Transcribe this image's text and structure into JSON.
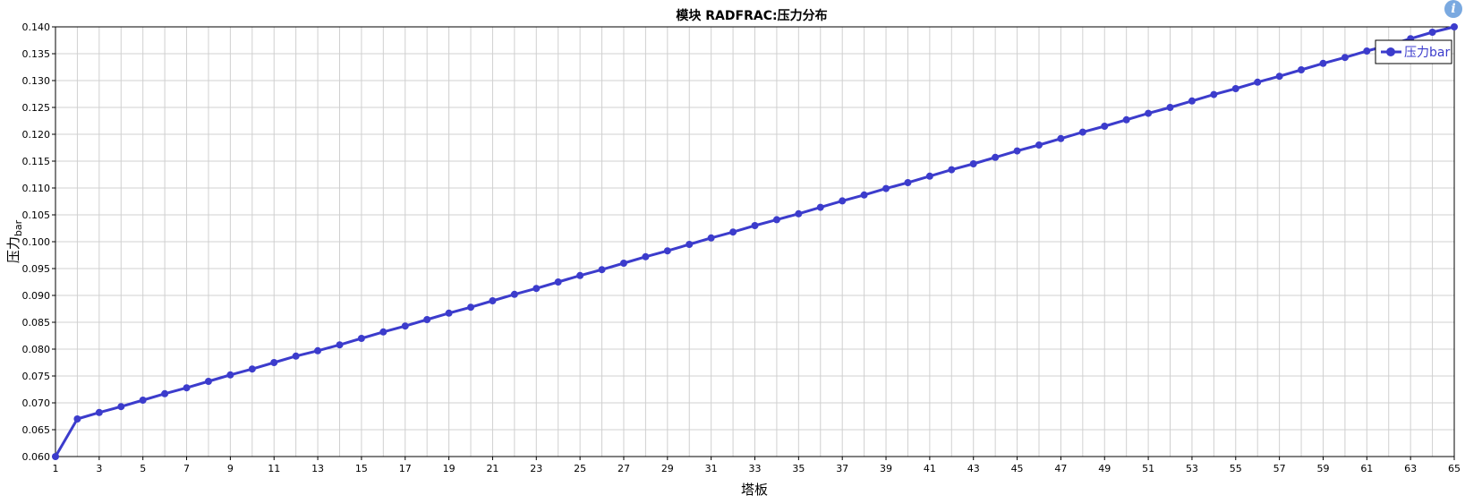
{
  "chart_data": {
    "type": "line",
    "title": "模块 RADFRAC:压力分布",
    "xlabel": "塔板",
    "ylabel": "压力",
    "ylabel_unit": "bar",
    "xlim": [
      1,
      65
    ],
    "ylim": [
      0.06,
      0.14
    ],
    "x_ticks": [
      1,
      3,
      5,
      7,
      9,
      11,
      13,
      15,
      17,
      19,
      21,
      23,
      25,
      27,
      29,
      31,
      33,
      35,
      37,
      39,
      41,
      43,
      45,
      47,
      49,
      51,
      53,
      55,
      57,
      59,
      61,
      63,
      65
    ],
    "y_ticks": [
      "0.060",
      "0.065",
      "0.070",
      "0.075",
      "0.080",
      "0.085",
      "0.090",
      "0.095",
      "0.100",
      "0.105",
      "0.110",
      "0.115",
      "0.120",
      "0.125",
      "0.130",
      "0.135",
      "0.140"
    ],
    "grid": true,
    "legend_position": "top-right",
    "series": [
      {
        "name": "压力bar",
        "color": "#3c3ccc",
        "x": [
          1,
          2,
          3,
          4,
          5,
          6,
          7,
          8,
          9,
          10,
          11,
          12,
          13,
          14,
          15,
          16,
          17,
          18,
          19,
          20,
          21,
          22,
          23,
          24,
          25,
          26,
          27,
          28,
          29,
          30,
          31,
          32,
          33,
          34,
          35,
          36,
          37,
          38,
          39,
          40,
          41,
          42,
          43,
          44,
          45,
          46,
          47,
          48,
          49,
          50,
          51,
          52,
          53,
          54,
          55,
          56,
          57,
          58,
          59,
          60,
          61,
          62,
          63,
          64,
          65
        ],
        "values": [
          0.06,
          0.067,
          0.0682,
          0.0693,
          0.0705,
          0.0717,
          0.0728,
          0.074,
          0.0752,
          0.0763,
          0.0775,
          0.0787,
          0.0797,
          0.0808,
          0.082,
          0.0832,
          0.0843,
          0.0855,
          0.0867,
          0.0878,
          0.089,
          0.0902,
          0.0913,
          0.0925,
          0.0937,
          0.0948,
          0.096,
          0.0972,
          0.0983,
          0.0995,
          0.1007,
          0.1018,
          0.103,
          0.1041,
          0.1052,
          0.1064,
          0.1076,
          0.1087,
          0.1099,
          0.111,
          0.1122,
          0.1134,
          0.1145,
          0.1157,
          0.1169,
          0.118,
          0.1192,
          0.1204,
          0.1215,
          0.1227,
          0.1239,
          0.125,
          0.1262,
          0.1274,
          0.1285,
          0.1297,
          0.1308,
          0.132,
          0.1332,
          0.1343,
          0.1355,
          0.1366,
          0.1378,
          0.139,
          0.14
        ]
      }
    ]
  },
  "info_badge": {
    "icon": "info-icon",
    "glyph": "i",
    "color": "#7aa9e0"
  }
}
